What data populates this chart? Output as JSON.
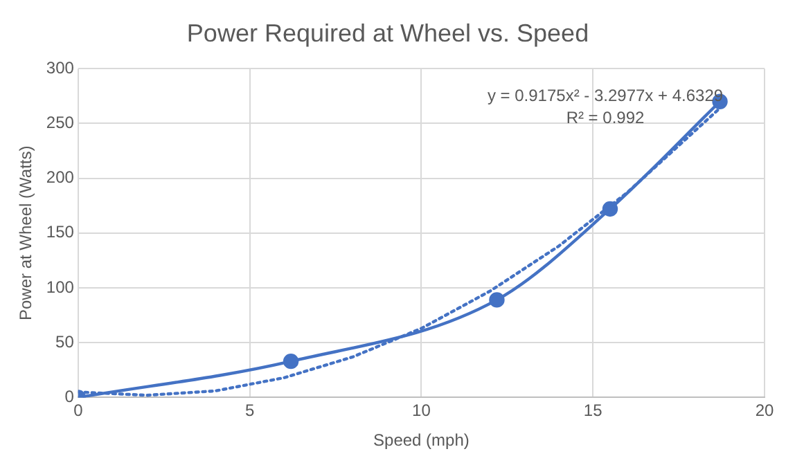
{
  "chart_data": {
    "type": "line",
    "title": "Power Required at Wheel vs. Speed",
    "xlabel": "Speed (mph)",
    "ylabel": "Power at Wheel (Watts)",
    "series": [
      {
        "color": "#4472c4",
        "marker": "circle",
        "line_style": "solid",
        "x": [
          0,
          6.2,
          12.2,
          15.5,
          18.7
        ],
        "values": [
          0,
          33,
          89,
          172,
          270
        ]
      },
      {
        "color": "#4472c4",
        "marker": "none",
        "line_style": "dotted",
        "x": [
          0,
          2,
          4,
          6,
          8,
          10,
          12,
          14,
          16,
          18.7
        ],
        "values": [
          5,
          2,
          6,
          18,
          37,
          63,
          97,
          138,
          187,
          264
        ]
      }
    ],
    "annotations": [
      "y = 0.9175x² - 3.2977x + 4.6329",
      "R² = 0.992"
    ],
    "xlim": [
      0,
      20
    ],
    "xticks": [
      0,
      5,
      10,
      15,
      20
    ],
    "ylim": [
      0,
      300
    ],
    "yticks": [
      0,
      50,
      100,
      150,
      200,
      250,
      300
    ],
    "grid": true
  }
}
